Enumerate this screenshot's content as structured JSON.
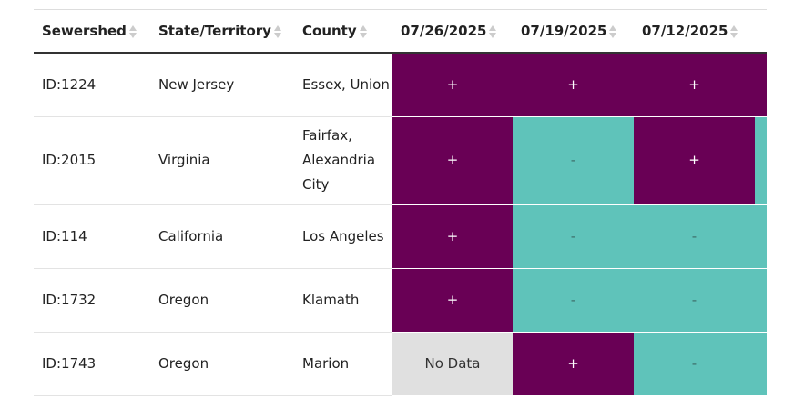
{
  "table": {
    "columns": [
      "Sewershed",
      "State/Territory",
      "County",
      "07/26/2025",
      "07/19/2025",
      "07/12/2025"
    ],
    "rows": [
      [
        "ID:1224",
        "New Jersey",
        "Essex, Union",
        "+",
        "+",
        "+"
      ],
      [
        "ID:2015",
        "Virginia",
        "Fairfax, Alexandria City",
        "+",
        "-",
        "+"
      ],
      [
        "ID:114",
        "California",
        "Los Angeles",
        "+",
        "-",
        "-"
      ],
      [
        "ID:1732",
        "Oregon",
        "Klamath",
        "+",
        "-",
        "-"
      ],
      [
        "ID:1743",
        "Oregon",
        "Marion",
        "No Data",
        "+",
        "-"
      ]
    ],
    "cell_colors": {
      "+": "#690055",
      "-": "#5fc3ba",
      "No Data": "#e0e0e0"
    },
    "cell_text_colors": {
      "+": "#ffffff",
      "-": "#3d6e69",
      "No Data": "#333333"
    }
  }
}
